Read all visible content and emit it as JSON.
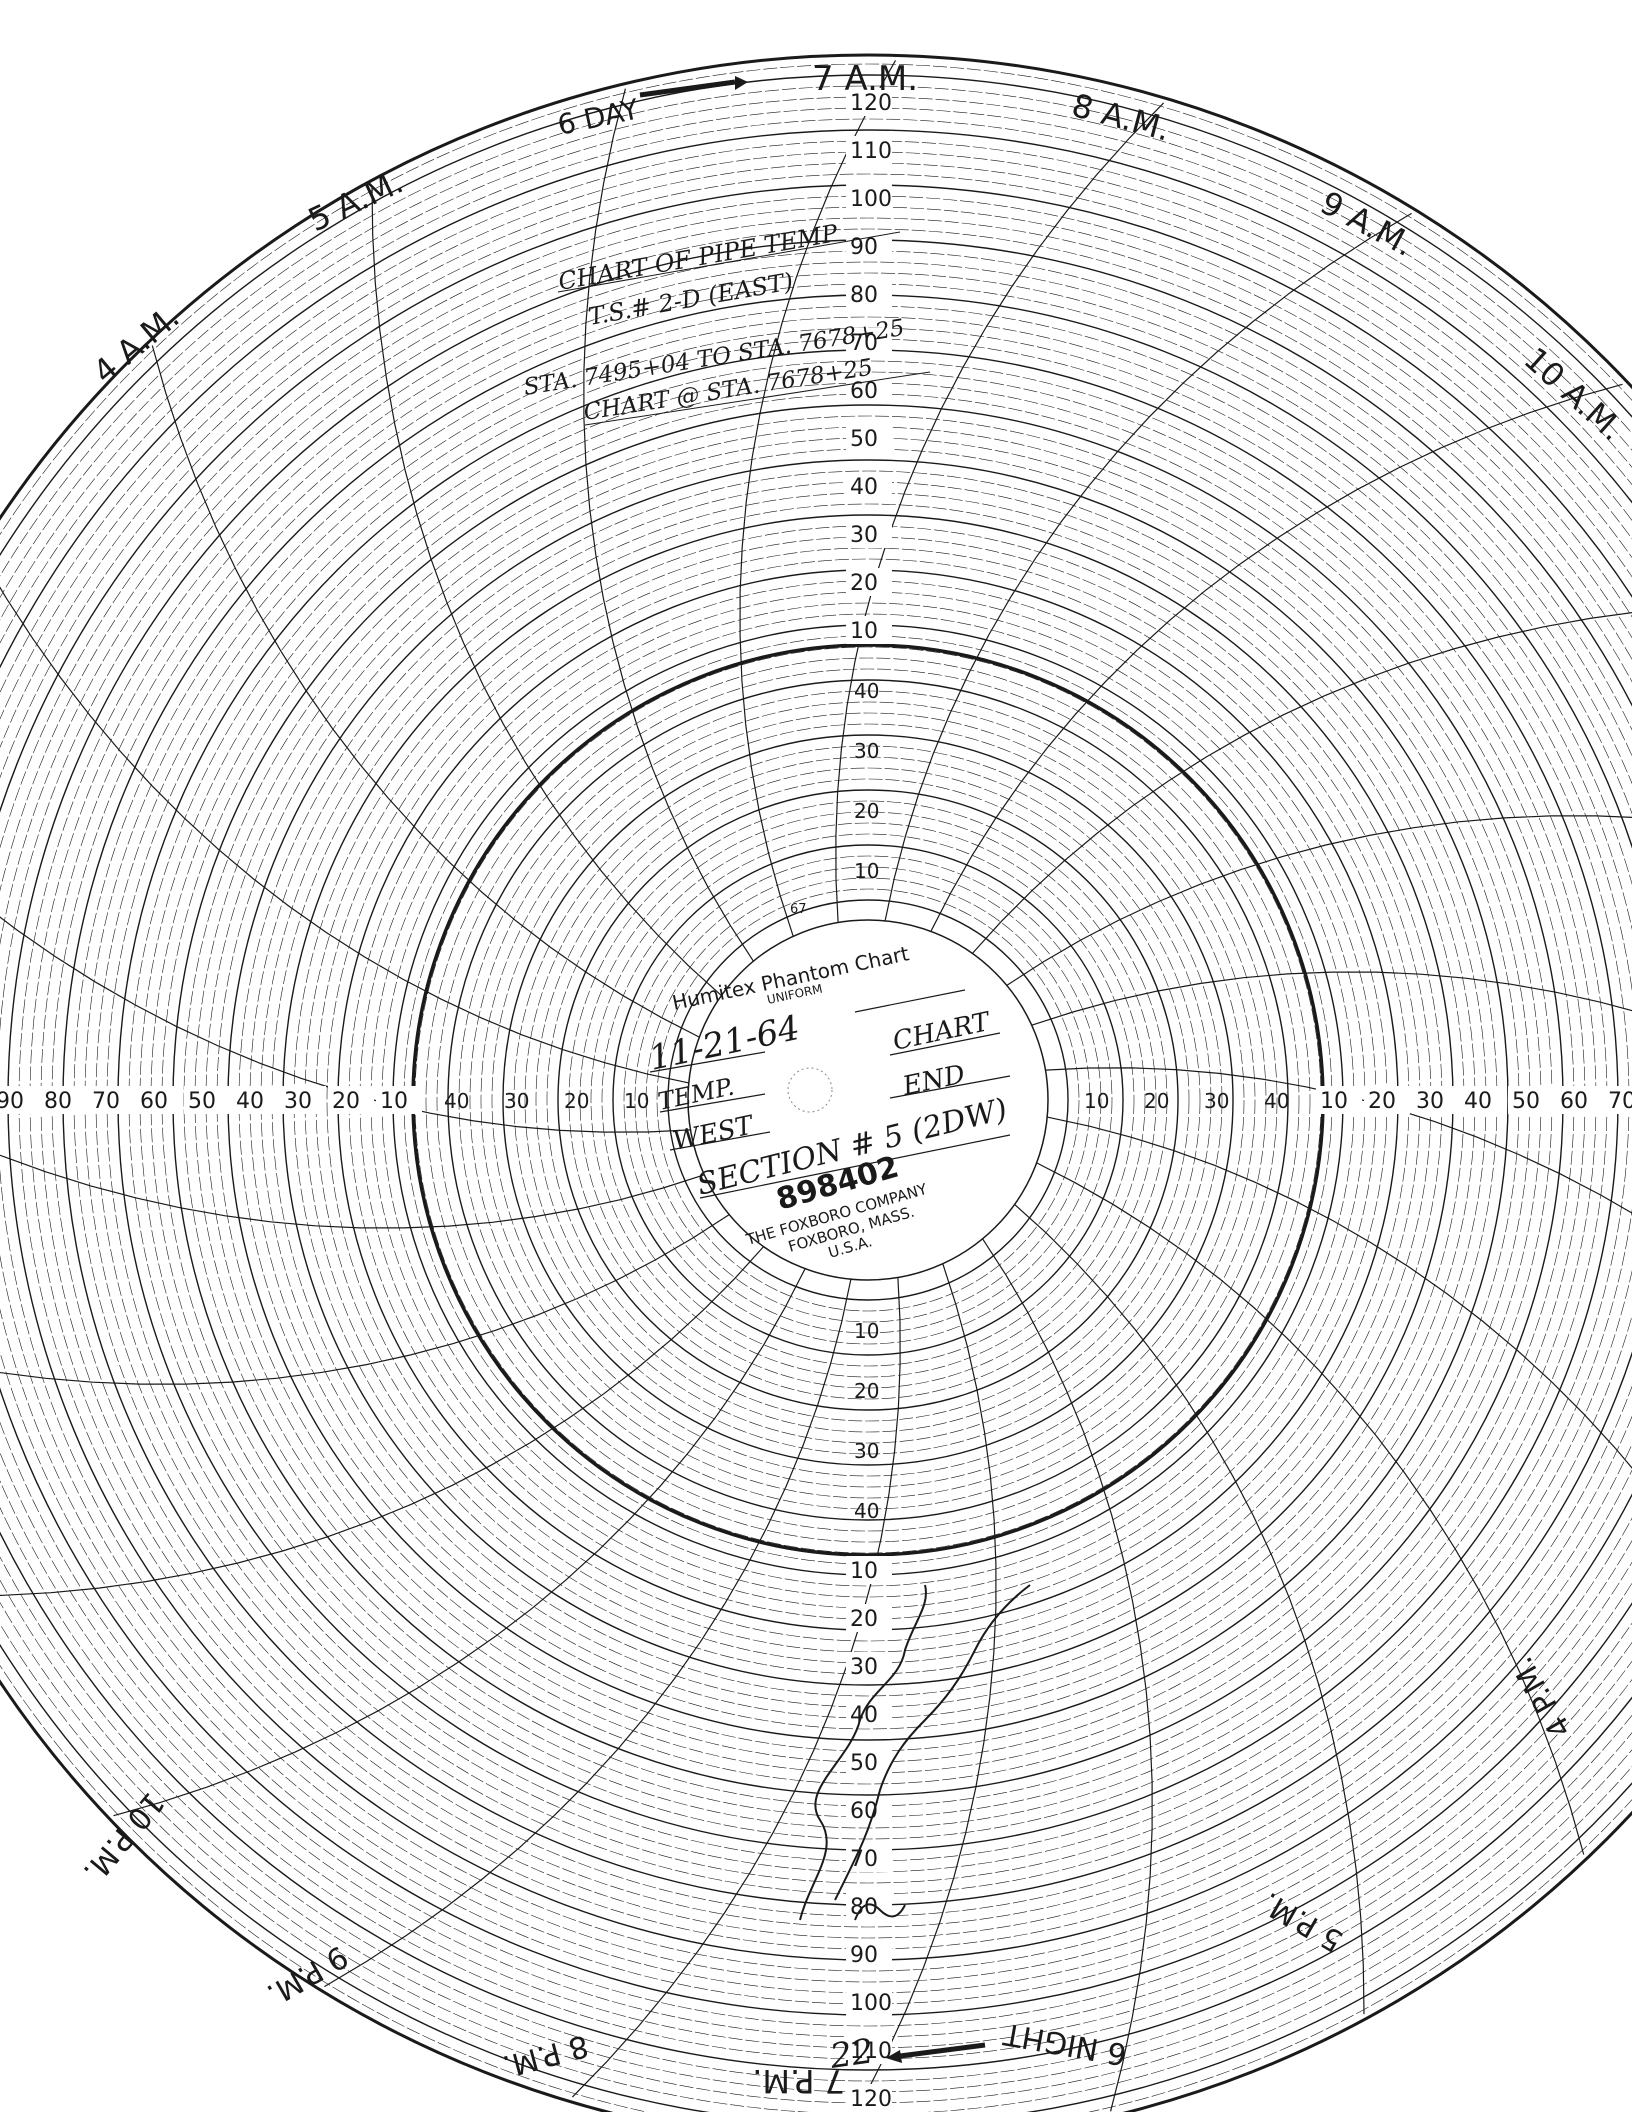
{
  "chart_label": {
    "brand": "Humitex Phantom Chart",
    "subtitle": "UNIFORM",
    "chart_no": "67",
    "catalog_number": "898402",
    "maker_line1": "THE FOXBORO COMPANY",
    "maker_line2": "FOXBORO, MASS.",
    "maker_line3": "U.S.A."
  },
  "handwritten_center": {
    "date": "11-21-64",
    "field_a": "TEMP.",
    "field_b": "WEST",
    "field_c": "CHART",
    "field_d": "END",
    "section": "SECTION # 5 (2DW)"
  },
  "handwritten_header": {
    "line1": "CHART OF PIPE TEMP",
    "line2": "T.S.# 2-D (EAST)",
    "line3": "STA. 7495+04 TO STA. 7678+25",
    "line4": "CHART @ STA. 7678+25"
  },
  "handwritten_note": "22",
  "time_labels": {
    "day6": "6 DAY",
    "a7": "7 A.M.",
    "a8": "8 A.M.",
    "a9": "9 A.M.",
    "a10": "10 A.M.",
    "a5": "5 A.M.",
    "a4": "4 A.M.",
    "p4": "4 P.M.",
    "p5": "5 P.M.",
    "night6": "6 NIGHT",
    "p7": "7 P.M.",
    "p8": "8 P.M.",
    "p9": "9 P.M.",
    "p10": "10 P.M."
  },
  "scale": {
    "values": [
      "120",
      "110",
      "100",
      "90",
      "80",
      "70",
      "60",
      "50",
      "40",
      "30",
      "20",
      "10"
    ],
    "inner_values": [
      "10",
      "20",
      "30",
      "40"
    ]
  },
  "colors": {
    "ink": "#1a1a1a",
    "paper": "#ffffff"
  }
}
